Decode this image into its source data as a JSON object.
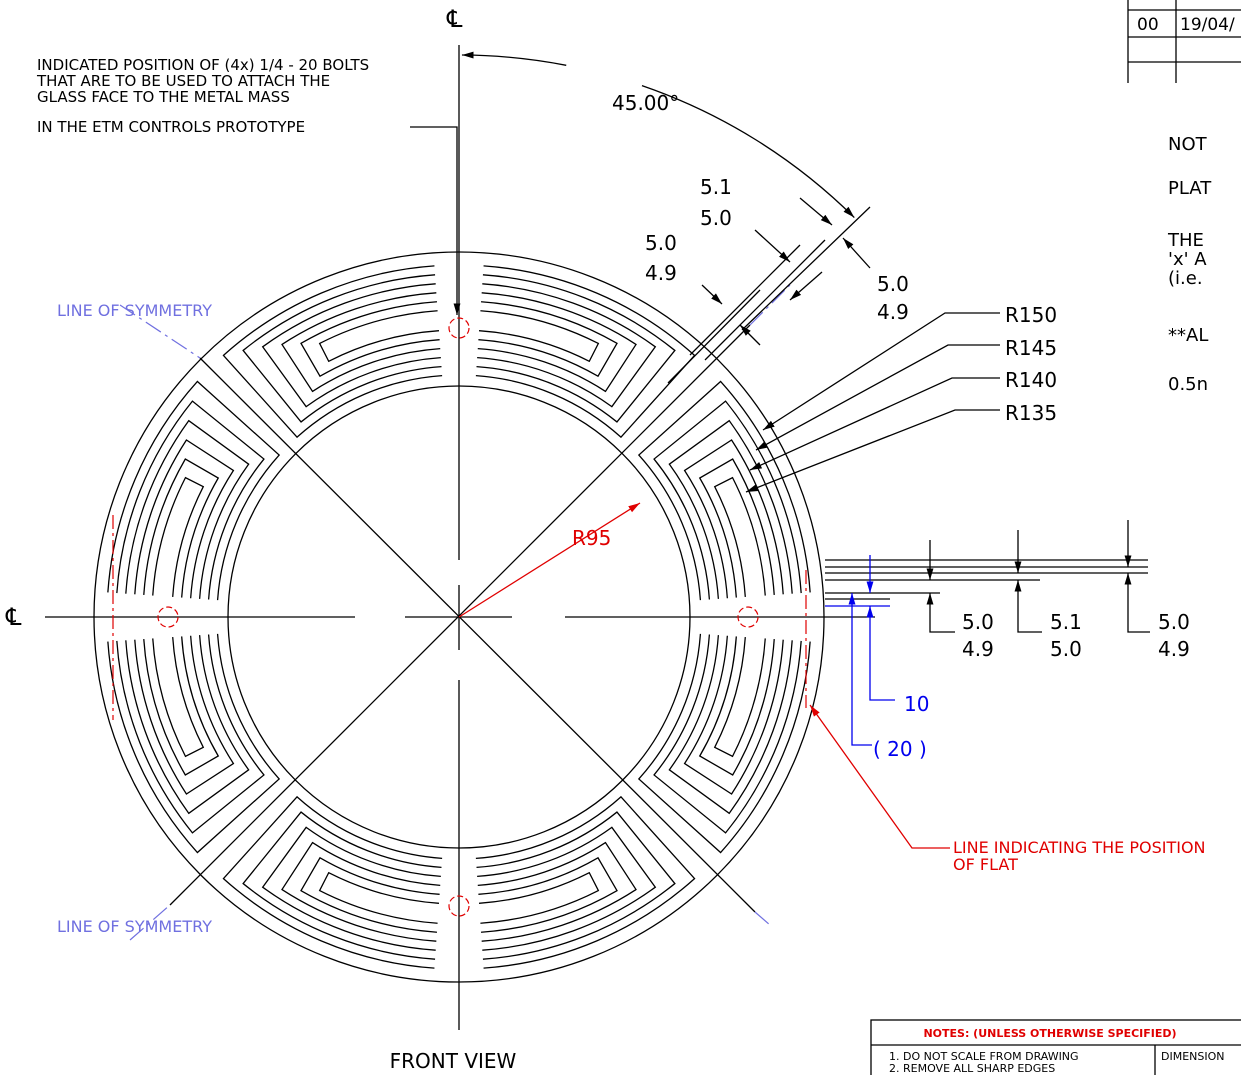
{
  "view_title": "FRONT VIEW",
  "centerline_labels": [
    "℄",
    "℄"
  ],
  "bolt_note": [
    "INDICATED POSITION OF (4x) 1/4 - 20 BOLTS",
    "THAT ARE TO BE USED TO ATTACH THE",
    "GLASS FACE TO THE METAL MASS",
    "IN THE ETM CONTROLS PROTOTYPE"
  ],
  "angle_dimension": "45.00°",
  "width_dimensions": [
    {
      "upper": "5.1",
      "lower": "5.0"
    },
    {
      "upper": "5.0",
      "lower": "4.9"
    },
    {
      "upper": "5.0",
      "lower": "4.9"
    }
  ],
  "radius_labels": [
    "R150",
    "R145",
    "R140",
    "R135"
  ],
  "symmetry_labels": [
    "LINE OF SYMMETRY",
    "LINE OF SYMMETRY"
  ],
  "inner_radius_label": "R95",
  "flat_dimensions": [
    {
      "upper": "5.0",
      "lower": "4.9"
    },
    {
      "upper": "5.1",
      "lower": "5.0"
    },
    {
      "upper": "5.0",
      "lower": "4.9"
    }
  ],
  "flat_offset": "10",
  "flat_reference": "( 20 )",
  "flat_note": [
    "LINE INDICATING THE POSITION",
    "OF FLAT"
  ],
  "notes_cropped": [
    "NOT",
    "PLAT",
    "THE",
    "'x' A",
    "(i.e.",
    "**AL",
    "0.5n"
  ],
  "revision_block": {
    "rev": "00",
    "date": "19/04/"
  },
  "general_notes": {
    "heading": "NOTES: (UNLESS OTHERWISE SPECIFIED)",
    "items": [
      "1. DO NOT SCALE FROM DRAWING",
      "2. REMOVE ALL SHARP EDGES"
    ],
    "dimension_header": "DIMENSION"
  }
}
